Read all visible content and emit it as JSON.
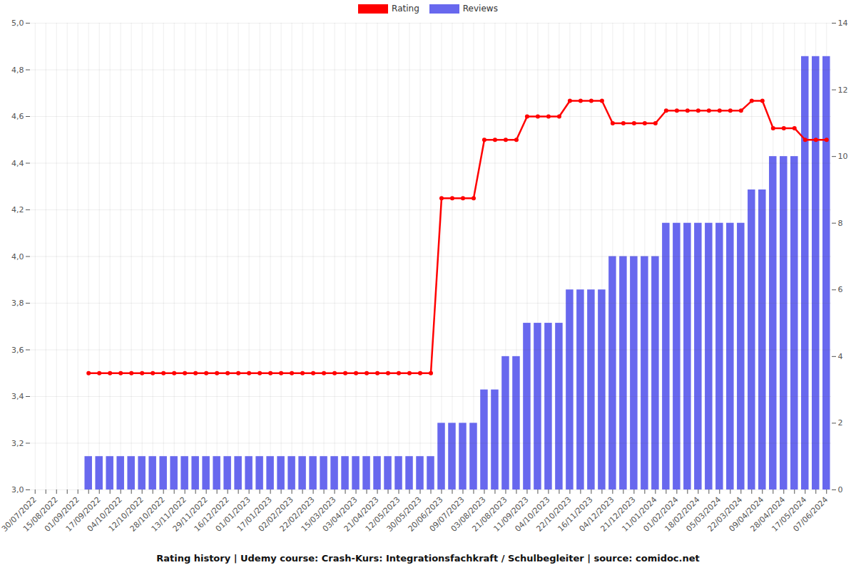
{
  "chart_data": {
    "type": "bar",
    "title": "Rating history | Udemy course: Crash-Kurs: Integrationsfachkraft / Schulbegleiter | source: comidoc.net",
    "categories": [
      "30/07/2022",
      null,
      "15/08/2022",
      null,
      "01/09/2022",
      null,
      "17/09/2022",
      null,
      "04/10/2022",
      null,
      "12/10/2022",
      null,
      "28/10/2022",
      null,
      "13/11/2022",
      null,
      "29/11/2022",
      null,
      "16/12/2022",
      null,
      "01/01/2023",
      null,
      "17/01/2023",
      null,
      "02/02/2023",
      null,
      "22/02/2023",
      null,
      "15/03/2023",
      null,
      "03/04/2023",
      null,
      "21/04/2023",
      null,
      "12/05/2023",
      null,
      "30/05/2023",
      null,
      "20/06/2023",
      null,
      "09/07/2023",
      null,
      "03/08/2023",
      null,
      "21/08/2023",
      null,
      "11/09/2023",
      null,
      "04/10/2023",
      null,
      "22/10/2023",
      null,
      "16/11/2023",
      null,
      "04/12/2023",
      null,
      "21/12/2023",
      null,
      "11/01/2024",
      null,
      "01/02/2024",
      null,
      "18/02/2024",
      null,
      "05/03/2024",
      null,
      "22/03/2024",
      null,
      "09/04/2024",
      null,
      "28/04/2024",
      null,
      "17/05/2024",
      null,
      "07/06/2024"
    ],
    "series": [
      {
        "name": "Rating",
        "type": "line",
        "color": "#ff0000",
        "marker": "circle",
        "values": [
          null,
          null,
          null,
          null,
          null,
          3.5,
          3.5,
          3.5,
          3.5,
          3.5,
          3.5,
          3.5,
          3.5,
          3.5,
          3.5,
          3.5,
          3.5,
          3.5,
          3.5,
          3.5,
          3.5,
          3.5,
          3.5,
          3.5,
          3.5,
          3.5,
          3.5,
          3.5,
          3.5,
          3.5,
          3.5,
          3.5,
          3.5,
          3.5,
          3.5,
          3.5,
          3.5,
          3.5,
          4.25,
          4.25,
          4.25,
          4.25,
          4.5,
          4.5,
          4.5,
          4.5,
          4.6,
          4.6,
          4.6,
          4.6,
          4.667,
          4.667,
          4.667,
          4.667,
          4.571,
          4.571,
          4.571,
          4.571,
          4.571,
          4.625,
          4.625,
          4.625,
          4.625,
          4.625,
          4.625,
          4.625,
          4.625,
          4.667,
          4.667,
          4.55,
          4.55,
          4.55,
          4.5,
          4.5,
          4.5
        ]
      },
      {
        "name": "Reviews",
        "type": "bar",
        "axis": "y2",
        "color": "#6868ee",
        "values": [
          null,
          null,
          null,
          null,
          null,
          1,
          1,
          1,
          1,
          1,
          1,
          1,
          1,
          1,
          1,
          1,
          1,
          1,
          1,
          1,
          1,
          1,
          1,
          1,
          1,
          1,
          1,
          1,
          1,
          1,
          1,
          1,
          1,
          1,
          1,
          1,
          1,
          1,
          2,
          2,
          2,
          2,
          3,
          3,
          4,
          4,
          5,
          5,
          5,
          5,
          6,
          6,
          6,
          6,
          7,
          7,
          7,
          7,
          7,
          8,
          8,
          8,
          8,
          8,
          8,
          8,
          8,
          9,
          9,
          10,
          10,
          10,
          13,
          13,
          13
        ]
      }
    ],
    "ylim": [
      3,
      5
    ],
    "yticks": [
      {
        "value": 3,
        "label": "3,0"
      },
      {
        "value": 3.2,
        "label": "3,2"
      },
      {
        "value": 3.4,
        "label": "3,4"
      },
      {
        "value": 3.6,
        "label": "3,6"
      },
      {
        "value": 3.8,
        "label": "3,8"
      },
      {
        "value": 4,
        "label": "4,0"
      },
      {
        "value": 4.2,
        "label": "4,2"
      },
      {
        "value": 4.4,
        "label": "4,4"
      },
      {
        "value": 4.6,
        "label": "4,6"
      },
      {
        "value": 4.8,
        "label": "4,8"
      },
      {
        "value": 5,
        "label": "5,0"
      }
    ],
    "y2lim": [
      0,
      14
    ],
    "y2ticks": [
      0,
      2,
      4,
      6,
      8,
      10,
      12,
      14
    ],
    "grid": true,
    "legend": "top"
  }
}
